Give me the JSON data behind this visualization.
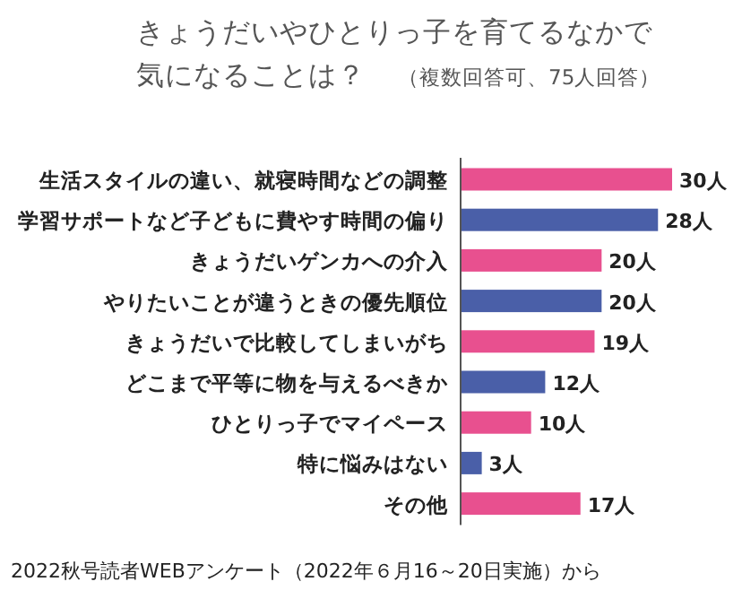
{
  "chart_data": {
    "type": "bar",
    "orientation": "horizontal",
    "title": "きょうだいやひとりっ子を育てるなかで気になることは？",
    "subtitle": "（複数回答可、75人回答）",
    "categories": [
      "生活スタイルの違い、就寝時間などの調整",
      "学習サポートなど子どもに費やす時間の偏り",
      "きょうだいゲンカへの介入",
      "やりたいことが違うときの優先順位",
      "きょうだいで比較してしまいがち",
      "どこまで平等に物を与えるべきか",
      "ひとりっ子でマイペース",
      "特に悩みはない",
      "その他"
    ],
    "values": [
      30,
      28,
      20,
      20,
      19,
      12,
      10,
      3,
      17
    ],
    "value_labels": [
      "30人",
      "28人",
      "20人",
      "20人",
      "19人",
      "12人",
      "10人",
      "3人",
      "17人"
    ],
    "colors": [
      "#e8508f",
      "#4a5fa8",
      "#e8508f",
      "#4a5fa8",
      "#e8508f",
      "#4a5fa8",
      "#e8508f",
      "#4a5fa8",
      "#e8508f"
    ],
    "annotations": [
      "2022秋号読者WEBアンケート（2022年６月16～20日実施）から"
    ]
  }
}
